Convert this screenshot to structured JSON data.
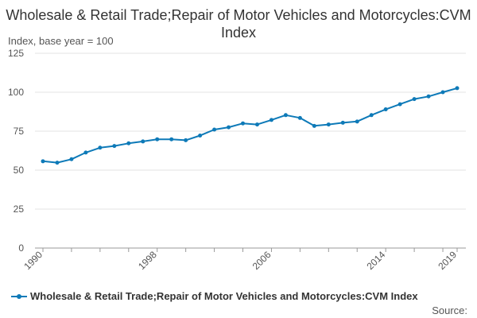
{
  "chart_data": {
    "type": "line",
    "title": "Wholesale & Retail Trade;Repair of Motor Vehicles and Motorcycles:CVM Index",
    "ylabel": "Index, base year = 100",
    "xlabel": "",
    "ylim": [
      0,
      125
    ],
    "yticks": [
      0,
      25,
      50,
      75,
      100,
      125
    ],
    "xtick_labels": [
      "1990",
      "1998",
      "2006",
      "2014",
      "2019"
    ],
    "grid": true,
    "legend_position": "bottom-left",
    "series": [
      {
        "name": "Wholesale & Retail Trade;Repair of Motor Vehicles and Motorcycles:CVM Index",
        "color": "#0e7ab8",
        "x": [
          1990,
          1991,
          1992,
          1993,
          1994,
          1995,
          1996,
          1997,
          1998,
          1999,
          2000,
          2001,
          2002,
          2003,
          2004,
          2005,
          2006,
          2007,
          2008,
          2009,
          2010,
          2011,
          2012,
          2013,
          2014,
          2015,
          2016,
          2017,
          2018,
          2019
        ],
        "values": [
          55.7,
          54.8,
          57.0,
          61.3,
          64.4,
          65.5,
          67.2,
          68.4,
          69.8,
          69.8,
          69.2,
          72.2,
          76.0,
          77.5,
          80.0,
          79.3,
          82.2,
          85.3,
          83.5,
          78.4,
          79.3,
          80.4,
          81.2,
          85.3,
          89.0,
          92.3,
          95.6,
          97.3,
          100.0,
          102.6
        ]
      }
    ]
  },
  "source_label": "Source:"
}
